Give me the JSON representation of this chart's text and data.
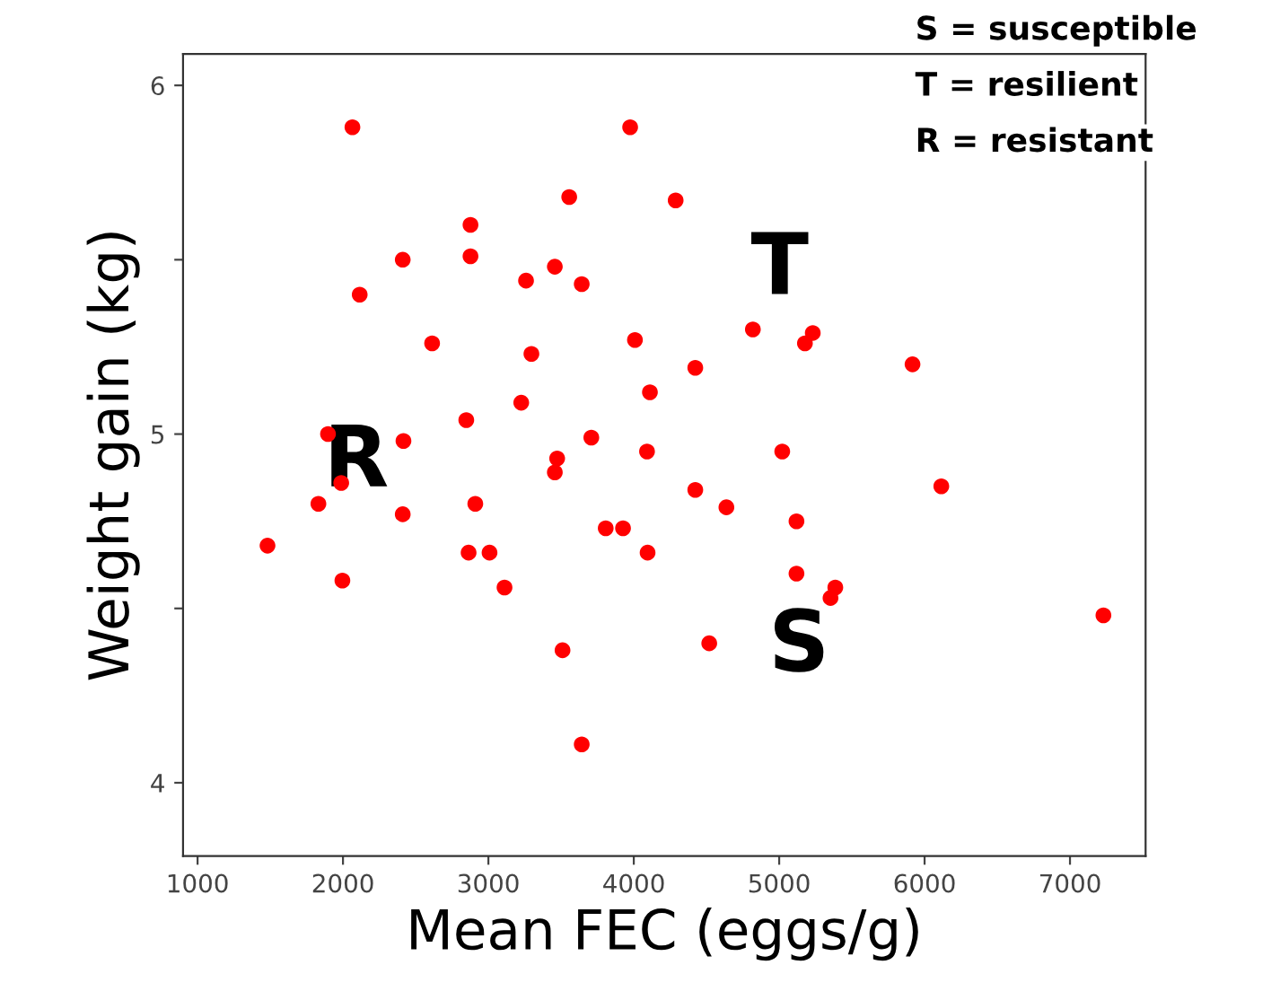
{
  "chart_data": {
    "type": "scatter",
    "xlabel": "Mean FEC (eggs/g)",
    "ylabel": "Weight gain (kg)",
    "x": [
      2065,
      3975,
      3556,
      4288,
      2877,
      2411,
      2877,
      3259,
      3457,
      3642,
      2115,
      2613,
      3296,
      4008,
      4423,
      4111,
      3226,
      2848,
      1897,
      2416,
      3708,
      4091,
      3473,
      3457,
      1988,
      1831,
      2411,
      2910,
      4423,
      1481,
      2864,
      3008,
      3807,
      3926,
      4095,
      1996,
      3111,
      3510,
      3642,
      4519,
      4819,
      5177,
      5231,
      5917,
      5021,
      4637,
      5119,
      6115,
      5119,
      5386,
      5353,
      7230
    ],
    "values": [
      5.88,
      5.88,
      5.68,
      5.67,
      5.6,
      5.5,
      5.51,
      5.44,
      5.48,
      5.43,
      5.4,
      5.26,
      5.23,
      5.27,
      5.19,
      5.12,
      5.09,
      5.04,
      5.0,
      4.98,
      4.99,
      4.95,
      4.93,
      4.89,
      4.86,
      4.8,
      4.77,
      4.8,
      4.84,
      4.68,
      4.66,
      4.66,
      4.73,
      4.73,
      4.66,
      4.58,
      4.56,
      4.38,
      4.11,
      4.4,
      5.3,
      5.26,
      5.29,
      5.2,
      4.95,
      4.79,
      4.75,
      4.85,
      4.6,
      4.56,
      4.53,
      4.48
    ],
    "color": "#ff0000",
    "marker": "circle",
    "xlim": [
      900,
      7520
    ],
    "ylim": [
      3.79,
      6.09
    ],
    "xticks": [
      1000,
      2000,
      3000,
      4000,
      5000,
      6000,
      7000
    ],
    "yticks": [
      4,
      {
        "value": 4.5,
        "label": null
      },
      5,
      {
        "value": 5.5,
        "label": null
      },
      6
    ],
    "grid": false,
    "annotations": [
      "S",
      "T",
      "R",
      "S = susceptible",
      "T = resilient",
      "R = resistant"
    ]
  }
}
